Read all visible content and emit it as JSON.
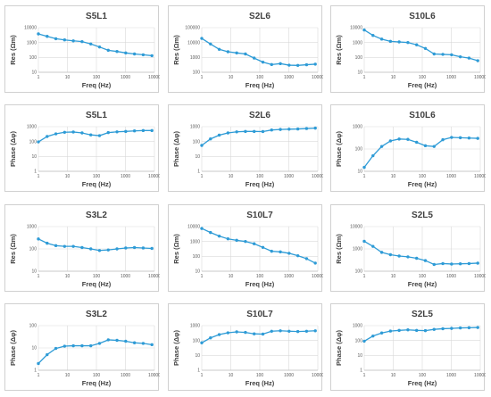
{
  "colors": {
    "series": "#2e9bd6",
    "grid": "#d9d9d9",
    "text": "#404040"
  },
  "chart_data": [
    {
      "type": "line",
      "title": "S5L1",
      "xlabel": "Freq (Hz)",
      "ylabel": "Res (Ωm)",
      "x_scale": "log",
      "y_scale": "log",
      "xlim": [
        1,
        10000
      ],
      "ylim": [
        10,
        10000
      ],
      "x_ticks": [
        "1",
        "10",
        "100",
        "1000",
        "10000"
      ],
      "y_ticks": [
        "10",
        "100",
        "1000",
        "10000"
      ],
      "grid": true,
      "x": [
        1,
        2,
        4,
        8,
        16,
        32,
        64,
        128,
        256,
        512,
        1024,
        2048,
        4096,
        8192
      ],
      "y": [
        3800,
        2600,
        1800,
        1500,
        1300,
        1150,
        800,
        500,
        300,
        250,
        200,
        170,
        150,
        130
      ]
    },
    {
      "type": "line",
      "title": "S2L6",
      "xlabel": "Freq (Hz)",
      "ylabel": "Res (Ωm)",
      "x_scale": "log",
      "y_scale": "log",
      "xlim": [
        1,
        10000
      ],
      "ylim": [
        100,
        100000
      ],
      "x_ticks": [
        "1",
        "10",
        "100",
        "1000",
        "10000"
      ],
      "y_ticks": [
        "100",
        "1000",
        "10000",
        "100000"
      ],
      "grid": true,
      "x": [
        1,
        2,
        4,
        8,
        16,
        32,
        64,
        128,
        256,
        512,
        1024,
        2048,
        4096,
        8192
      ],
      "y": [
        19000,
        8000,
        3500,
        2400,
        2000,
        1700,
        900,
        480,
        330,
        380,
        300,
        290,
        320,
        350
      ]
    },
    {
      "type": "line",
      "title": "S10L6",
      "xlabel": "Freq (Hz)",
      "ylabel": "Res (Ωm)",
      "x_scale": "log",
      "y_scale": "log",
      "xlim": [
        1,
        10000
      ],
      "ylim": [
        10,
        10000
      ],
      "x_ticks": [
        "1",
        "10",
        "100",
        "1000",
        "10000"
      ],
      "y_ticks": [
        "10",
        "100",
        "1000",
        "10000"
      ],
      "grid": true,
      "x": [
        1,
        2,
        4,
        8,
        16,
        32,
        64,
        128,
        256,
        512,
        1024,
        2048,
        4096,
        8192
      ],
      "y": [
        7000,
        3000,
        1700,
        1200,
        1100,
        1000,
        700,
        400,
        170,
        160,
        150,
        110,
        90,
        60
      ]
    },
    {
      "type": "line",
      "title": "S5L1",
      "xlabel": "Freq (Hz)",
      "ylabel": "Phase (Δφ)",
      "x_scale": "log",
      "y_scale": "log",
      "xlim": [
        1,
        10000
      ],
      "ylim": [
        1,
        1000
      ],
      "x_ticks": [
        "1",
        "10",
        "100",
        "1000",
        "10000"
      ],
      "y_ticks": [
        "1",
        "10",
        "100",
        "1000"
      ],
      "grid": true,
      "x": [
        1,
        2,
        4,
        8,
        16,
        32,
        64,
        128,
        256,
        512,
        1024,
        2048,
        4096,
        8192
      ],
      "y": [
        95,
        220,
        330,
        420,
        440,
        380,
        280,
        250,
        400,
        450,
        480,
        520,
        550,
        550
      ]
    },
    {
      "type": "line",
      "title": "S2L6",
      "xlabel": "Freq (Hz)",
      "ylabel": "Phase (Δφ)",
      "x_scale": "log",
      "y_scale": "log",
      "xlim": [
        1,
        10000
      ],
      "ylim": [
        1,
        1000
      ],
      "x_ticks": [
        "1",
        "10",
        "100",
        "1000",
        "10000"
      ],
      "y_ticks": [
        "1",
        "10",
        "100",
        "1000"
      ],
      "grid": true,
      "x": [
        1,
        2,
        4,
        8,
        16,
        32,
        64,
        128,
        256,
        512,
        1024,
        2048,
        4096,
        8192
      ],
      "y": [
        55,
        150,
        270,
        380,
        450,
        480,
        480,
        470,
        600,
        650,
        680,
        700,
        750,
        800
      ]
    },
    {
      "type": "line",
      "title": "S10L6",
      "xlabel": "Freq (Hz)",
      "ylabel": "Phase (Δφ)",
      "x_scale": "log",
      "y_scale": "log",
      "xlim": [
        1,
        10000
      ],
      "ylim": [
        10,
        1000
      ],
      "x_ticks": [
        "1",
        "10",
        "100",
        "1000",
        "10000"
      ],
      "y_ticks": [
        "10",
        "100",
        "1000"
      ],
      "grid": true,
      "x": [
        1,
        2,
        4,
        8,
        16,
        32,
        64,
        128,
        256,
        512,
        1024,
        2048,
        4096,
        8192
      ],
      "y": [
        15,
        50,
        130,
        230,
        280,
        270,
        200,
        140,
        130,
        260,
        330,
        320,
        310,
        300
      ]
    },
    {
      "type": "line",
      "title": "S3L2",
      "xlabel": "Freq (Hz)",
      "ylabel": "Res (Ωm)",
      "x_scale": "log",
      "y_scale": "log",
      "xlim": [
        1,
        10000
      ],
      "ylim": [
        10,
        1000
      ],
      "x_ticks": [
        "1",
        "10",
        "100",
        "1000",
        "10000"
      ],
      "y_ticks": [
        "10",
        "100",
        "1000"
      ],
      "grid": true,
      "x": [
        1,
        2,
        4,
        8,
        16,
        32,
        64,
        128,
        256,
        512,
        1024,
        2048,
        4096,
        8192
      ],
      "y": [
        280,
        180,
        140,
        130,
        130,
        115,
        100,
        85,
        90,
        100,
        110,
        115,
        110,
        105
      ]
    },
    {
      "type": "line",
      "title": "S10L7",
      "xlabel": "Freq (Hz)",
      "ylabel": "Res (Ωm)",
      "x_scale": "log",
      "y_scale": "log",
      "xlim": [
        1,
        10000
      ],
      "ylim": [
        10,
        10000
      ],
      "x_ticks": [
        "1",
        "10",
        "100",
        "1000",
        "10000"
      ],
      "y_ticks": [
        "10",
        "100",
        "1000",
        "10000"
      ],
      "grid": true,
      "x": [
        1,
        2,
        4,
        8,
        16,
        32,
        64,
        128,
        256,
        512,
        1024,
        2048,
        4096,
        8192
      ],
      "y": [
        7500,
        4000,
        2300,
        1500,
        1200,
        1000,
        700,
        400,
        220,
        200,
        160,
        110,
        70,
        35
      ]
    },
    {
      "type": "line",
      "title": "S2L5",
      "xlabel": "Freq (Hz)",
      "ylabel": "Res (Ωm)",
      "x_scale": "log",
      "y_scale": "log",
      "xlim": [
        1,
        10000
      ],
      "ylim": [
        100,
        10000
      ],
      "x_ticks": [
        "1",
        "10",
        "100",
        "1000",
        "10000"
      ],
      "y_ticks": [
        "100",
        "1000",
        "10000"
      ],
      "grid": true,
      "x": [
        1,
        2,
        4,
        8,
        16,
        32,
        64,
        128,
        256,
        512,
        1024,
        2048,
        4096,
        8192
      ],
      "y": [
        2200,
        1300,
        700,
        550,
        480,
        440,
        380,
        300,
        200,
        220,
        210,
        215,
        220,
        230
      ]
    },
    {
      "type": "line",
      "title": "S3L2",
      "xlabel": "Freq (Hz)",
      "ylabel": "Phase (Δφ)",
      "x_scale": "log",
      "y_scale": "log",
      "xlim": [
        1,
        10000
      ],
      "ylim": [
        1,
        100
      ],
      "x_ticks": [
        "1",
        "10",
        "100",
        "1000",
        "10000"
      ],
      "y_ticks": [
        "1",
        "10",
        "100"
      ],
      "grid": true,
      "x": [
        1,
        2,
        4,
        8,
        16,
        32,
        64,
        128,
        256,
        512,
        1024,
        2048,
        4096,
        8192
      ],
      "y": [
        2,
        5,
        9.5,
        12,
        12.5,
        12.5,
        12.5,
        16,
        23,
        22,
        20,
        17,
        16,
        14
      ]
    },
    {
      "type": "line",
      "title": "S10L7",
      "xlabel": "Freq (Hz)",
      "ylabel": "Phase (Δφ)",
      "x_scale": "log",
      "y_scale": "log",
      "xlim": [
        1,
        10000
      ],
      "ylim": [
        1,
        1000
      ],
      "x_ticks": [
        "1",
        "10",
        "100",
        "1000",
        "10000"
      ],
      "y_ticks": [
        "1",
        "10",
        "100",
        "1000"
      ],
      "grid": true,
      "x": [
        1,
        2,
        4,
        8,
        16,
        32,
        64,
        128,
        256,
        512,
        1024,
        2048,
        4096,
        8192
      ],
      "y": [
        70,
        150,
        250,
        330,
        380,
        350,
        280,
        270,
        420,
        450,
        420,
        400,
        420,
        450
      ]
    },
    {
      "type": "line",
      "title": "S2L5",
      "xlabel": "Freq (Hz)",
      "ylabel": "Phase (Δφ)",
      "x_scale": "log",
      "y_scale": "log",
      "xlim": [
        1,
        10000
      ],
      "ylim": [
        1,
        1000
      ],
      "x_ticks": [
        "1",
        "10",
        "100",
        "1000",
        "10000"
      ],
      "y_ticks": [
        "1",
        "10",
        "100",
        "1000"
      ],
      "grid": true,
      "x": [
        1,
        2,
        4,
        8,
        16,
        32,
        64,
        128,
        256,
        512,
        1024,
        2048,
        4096,
        8192
      ],
      "y": [
        90,
        200,
        320,
        430,
        480,
        520,
        480,
        460,
        560,
        620,
        650,
        700,
        720,
        750
      ]
    }
  ]
}
